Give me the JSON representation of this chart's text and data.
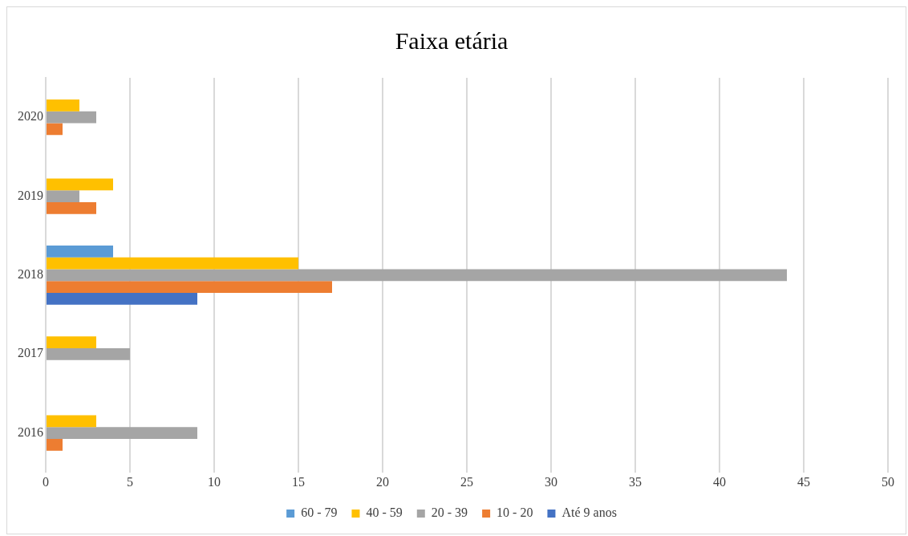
{
  "chart_data": {
    "type": "bar",
    "orientation": "horizontal",
    "title": "Faixa etária",
    "categories": [
      "2020",
      "2019",
      "2018",
      "2017",
      "2016"
    ],
    "series": [
      {
        "name": "60 - 79",
        "color": "#5b9bd5",
        "values": [
          0,
          0,
          4,
          0,
          0
        ]
      },
      {
        "name": "40 - 59",
        "color": "#ffc000",
        "values": [
          2,
          4,
          15,
          3,
          3
        ]
      },
      {
        "name": "20 - 39",
        "color": "#a5a5a5",
        "values": [
          3,
          2,
          44,
          5,
          9
        ]
      },
      {
        "name": "10 - 20",
        "color": "#ed7d31",
        "values": [
          1,
          3,
          17,
          0,
          1
        ]
      },
      {
        "name": "Até 9 anos",
        "color": "#4472c4",
        "values": [
          0,
          0,
          9,
          0,
          0
        ]
      }
    ],
    "xlim": [
      0,
      50
    ],
    "xticks": [
      0,
      5,
      10,
      15,
      20,
      25,
      30,
      35,
      40,
      45,
      50
    ],
    "grid": "x",
    "legend": "bottom"
  }
}
